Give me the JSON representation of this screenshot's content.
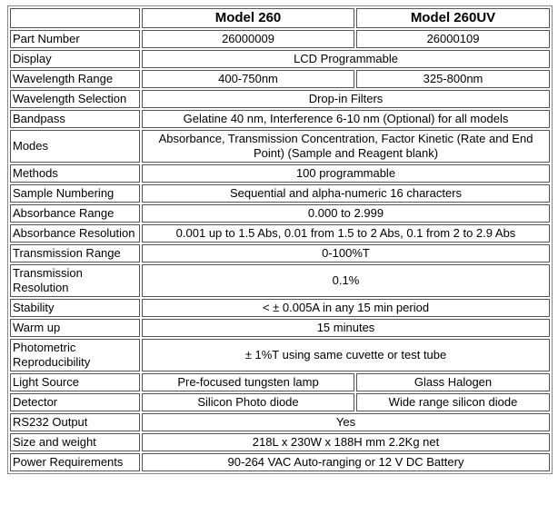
{
  "table": {
    "header": {
      "model_a": "Model 260",
      "model_b": "Model 260UV"
    },
    "rows": [
      {
        "label": "Part Number",
        "cells": [
          "26000009",
          "26000109"
        ]
      },
      {
        "label": "Display",
        "cells": [
          "LCD Programmable"
        ]
      },
      {
        "label": "Wavelength Range",
        "cells": [
          "400-750nm",
          "325-800nm"
        ]
      },
      {
        "label": "Wavelength Selection",
        "cells": [
          "Drop-in Filters"
        ]
      },
      {
        "label": "Bandpass",
        "cells": [
          "Gelatine 40 nm, Interference 6-10 nm (Optional) for all models"
        ]
      },
      {
        "label": "Modes",
        "cells": [
          "Absorbance, Transmission Concentration, Factor Kinetic (Rate and End Point) (Sample and Reagent blank)"
        ]
      },
      {
        "label": "Methods",
        "cells": [
          "100 programmable"
        ]
      },
      {
        "label": "Sample Numbering",
        "cells": [
          "Sequential and alpha-numeric 16 characters"
        ]
      },
      {
        "label": "Absorbance Range",
        "cells": [
          "0.000 to 2.999"
        ]
      },
      {
        "label": "Absorbance Resolution",
        "cells": [
          "0.001 up to 1.5 Abs, 0.01 from 1.5 to 2 Abs, 0.1 from 2 to 2.9 Abs"
        ]
      },
      {
        "label": "Transmission Range",
        "cells": [
          "0-100%T"
        ]
      },
      {
        "label": "Transmission Resolution",
        "cells": [
          "0.1%"
        ]
      },
      {
        "label": "Stability",
        "cells": [
          "< ± 0.005A in any 15 min period"
        ]
      },
      {
        "label": "Warm up",
        "cells": [
          "15 minutes"
        ]
      },
      {
        "label": "Photometric Reproducibility",
        "cells": [
          "± 1%T using same cuvette or test tube"
        ]
      },
      {
        "label": "Light Source",
        "cells": [
          "Pre-focused tungsten lamp",
          "Glass Halogen"
        ]
      },
      {
        "label": "Detector",
        "cells": [
          "Silicon Photo diode",
          "Wide range silicon diode"
        ]
      },
      {
        "label": "RS232 Output",
        "cells": [
          "Yes"
        ]
      },
      {
        "label": "Size and weight",
        "cells": [
          "218L x 230W x 188H mm 2.2Kg net"
        ]
      },
      {
        "label": "Power Requirements",
        "cells": [
          "90-264 VAC Auto-ranging or 12 V DC Battery"
        ]
      }
    ]
  }
}
